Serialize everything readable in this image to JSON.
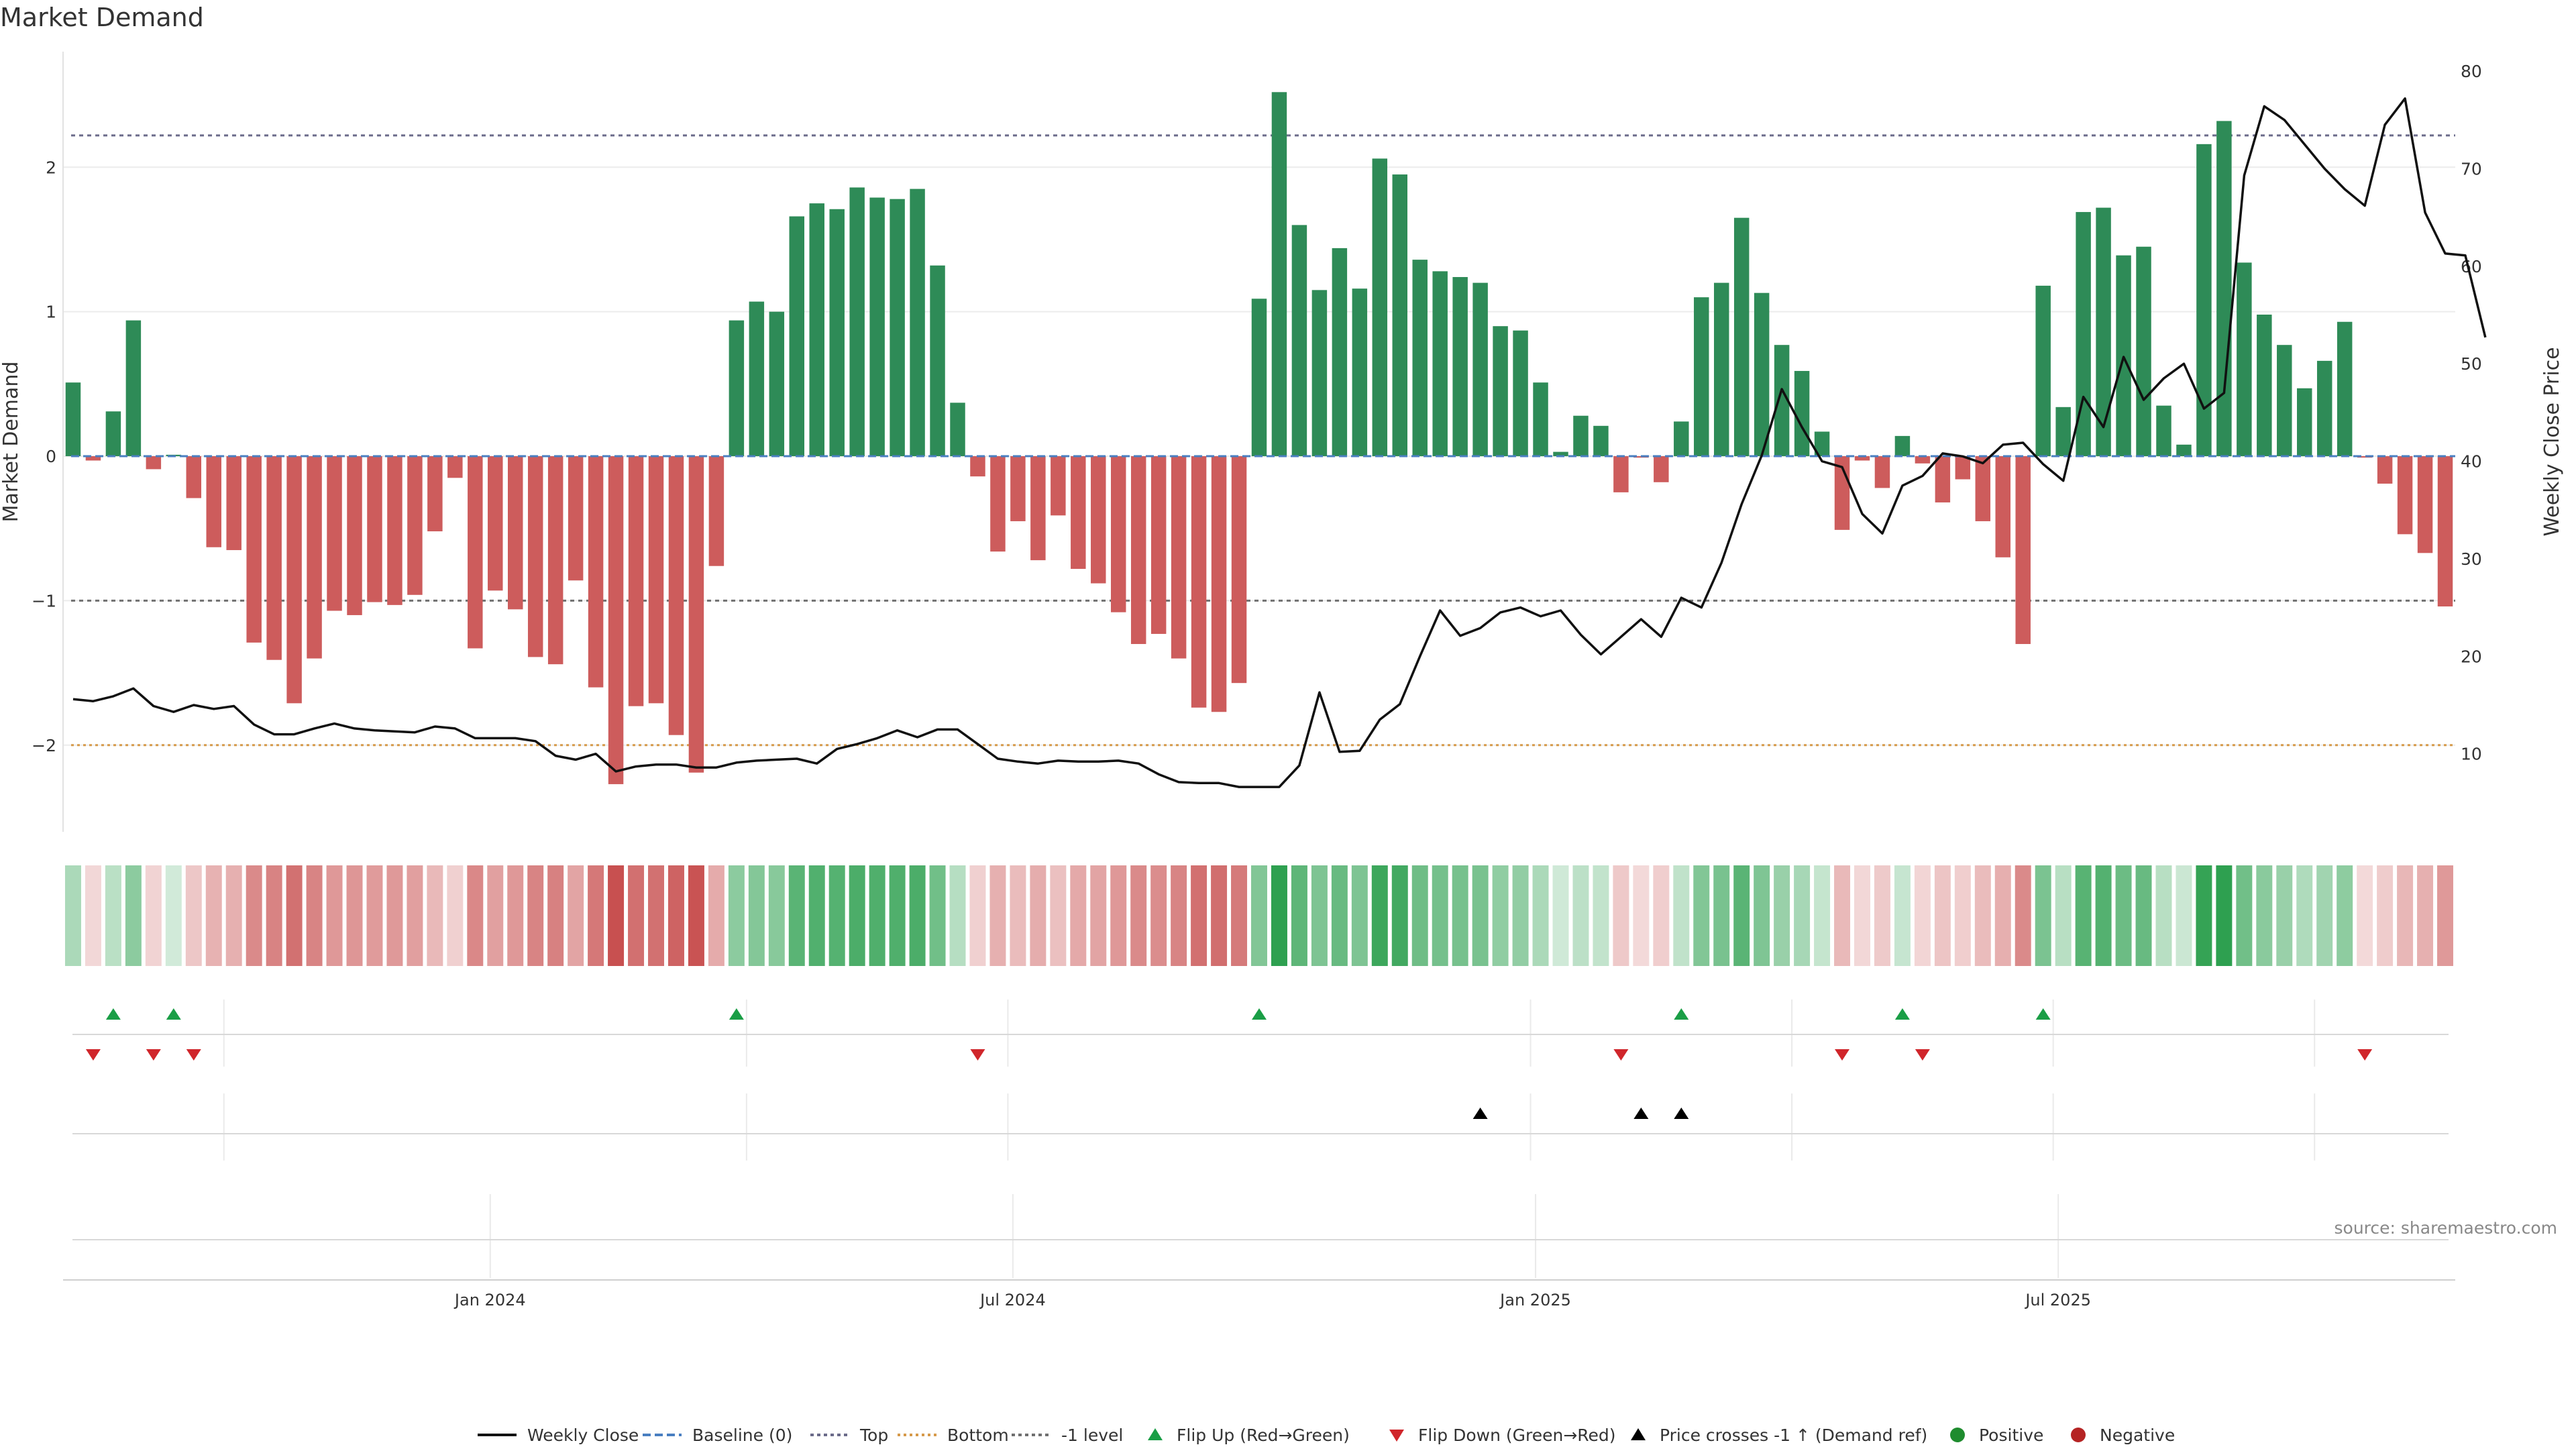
{
  "title": "Market Demand",
  "source": "source: sharemaestro.com",
  "chart_data": {
    "type": "bar",
    "title": "Market Demand",
    "ylabel": "Market Demand",
    "y2label": "Weekly Close Price",
    "ylim": [
      -2.6,
      2.8
    ],
    "y2lim": [
      2,
      82
    ],
    "yticks": [
      "2",
      "1",
      "0",
      "−1",
      "−2"
    ],
    "y2ticks": [
      "80",
      "70",
      "60",
      "50",
      "40",
      "30",
      "20",
      "10"
    ],
    "xtick_labels": [
      "Jan 2024",
      "Jul 2024",
      "Jan 2025",
      "Jul 2025"
    ],
    "xtick_weeks": [
      21.25,
      47.25,
      73.25,
      99.25
    ],
    "reference_lines": {
      "top": 2.22,
      "bottom": -2.0,
      "minus_one": -1.0,
      "baseline": 0
    },
    "demand": [
      0.51,
      -0.03,
      0.31,
      0.94,
      -0.09,
      0.01,
      -0.29,
      -0.63,
      -0.65,
      -1.29,
      -1.41,
      -1.71,
      -1.4,
      -1.07,
      -1.1,
      -1.01,
      -1.03,
      -0.96,
      -0.52,
      -0.15,
      -1.33,
      -0.93,
      -1.06,
      -1.39,
      -1.44,
      -0.86,
      -1.6,
      -2.27,
      -1.73,
      -1.71,
      -1.93,
      -2.19,
      -0.76,
      0.94,
      1.07,
      1.0,
      1.66,
      1.75,
      1.71,
      1.86,
      1.79,
      1.78,
      1.85,
      1.32,
      0.37,
      -0.14,
      -0.66,
      -0.45,
      -0.72,
      -0.41,
      -0.78,
      -0.88,
      -1.08,
      -1.3,
      -1.23,
      -1.4,
      -1.74,
      -1.77,
      -1.57,
      1.09,
      2.52,
      1.6,
      1.15,
      1.44,
      1.16,
      2.06,
      1.95,
      1.36,
      1.28,
      1.24,
      1.2,
      0.9,
      0.87,
      0.51,
      0.03,
      0.28,
      0.21,
      -0.25,
      -0.01,
      -0.18,
      0.24,
      1.1,
      1.2,
      1.65,
      1.13,
      0.77,
      0.59,
      0.17,
      -0.51,
      -0.03,
      -0.22,
      0.14,
      -0.05,
      -0.32,
      -0.16,
      -0.45,
      -0.7,
      -1.3,
      1.18,
      0.34,
      1.69,
      1.72,
      1.39,
      1.45,
      0.35,
      0.08,
      2.16,
      2.32,
      1.34,
      0.98,
      0.77,
      0.47,
      0.66,
      0.93,
      -0.01,
      -0.19,
      -0.54,
      -0.67,
      -1.04
    ],
    "close": [
      15.6,
      15.4,
      15.9,
      16.7,
      14.9,
      14.3,
      15.0,
      14.6,
      14.9,
      13.0,
      12.0,
      12.0,
      12.6,
      13.1,
      12.6,
      12.4,
      12.3,
      12.2,
      12.8,
      12.6,
      11.6,
      11.6,
      11.6,
      11.3,
      9.8,
      9.4,
      10.0,
      8.2,
      8.7,
      8.9,
      8.9,
      8.6,
      8.6,
      9.1,
      9.3,
      9.4,
      9.5,
      9.0,
      10.5,
      11.0,
      11.6,
      12.4,
      11.7,
      12.5,
      12.5,
      11.0,
      9.5,
      9.2,
      9.0,
      9.3,
      9.2,
      9.2,
      9.3,
      9.0,
      7.9,
      7.1,
      7.0,
      7.0,
      6.6,
      6.6,
      6.6,
      8.8,
      16.3,
      10.2,
      10.3,
      13.5,
      15.1,
      20.0,
      24.7,
      22.1,
      22.9,
      24.5,
      25.0,
      24.1,
      24.7,
      22.2,
      20.2,
      22.0,
      23.8,
      22.0,
      26.0,
      25.0,
      29.6,
      35.6,
      40.6,
      47.4,
      43.5,
      40.0,
      39.4,
      34.6,
      32.6,
      37.5,
      38.5,
      40.8,
      40.5,
      39.8,
      41.7,
      41.9,
      39.7,
      38.0,
      46.6,
      43.5,
      50.7,
      46.3,
      48.5,
      50.0,
      45.4,
      47.0,
      69.3,
      76.4,
      75.0,
      72.5,
      70.0,
      67.9,
      66.2,
      74.5,
      77.2,
      65.5,
      61.3,
      61.1,
      52.7
    ],
    "heat_strip": "demand value mapped to green (positive) / red (negative) intensity per week",
    "flip_up_weeks": [
      2,
      5,
      33,
      59,
      80,
      91,
      98
    ],
    "flip_down_weeks": [
      1,
      4,
      6,
      45,
      77,
      88,
      92,
      114
    ],
    "price_cross_weeks": [
      70,
      78,
      80
    ],
    "legend": [
      "Weekly Close",
      "Baseline (0)",
      "Top",
      "Bottom",
      "-1 level",
      "Flip Up (Red→Green)",
      "Flip Down (Green→Red)",
      "Price crosses -1 ↑ (Demand ref)",
      "Positive",
      "Negative"
    ],
    "legend_position": "bottom"
  },
  "colors": {
    "positive": "#2e8b57",
    "negative": "#cd5c5c",
    "close": "#111111",
    "baseline": "#4a7fc1",
    "top": "#6b6b8a",
    "bottom": "#d69a4a",
    "minus_one": "#707070",
    "flip_up": "#1a9e46",
    "flip_down": "#d0262b",
    "cross": "#000000",
    "positive_dot": "#1f8c2f",
    "negative_dot": "#b52424"
  }
}
